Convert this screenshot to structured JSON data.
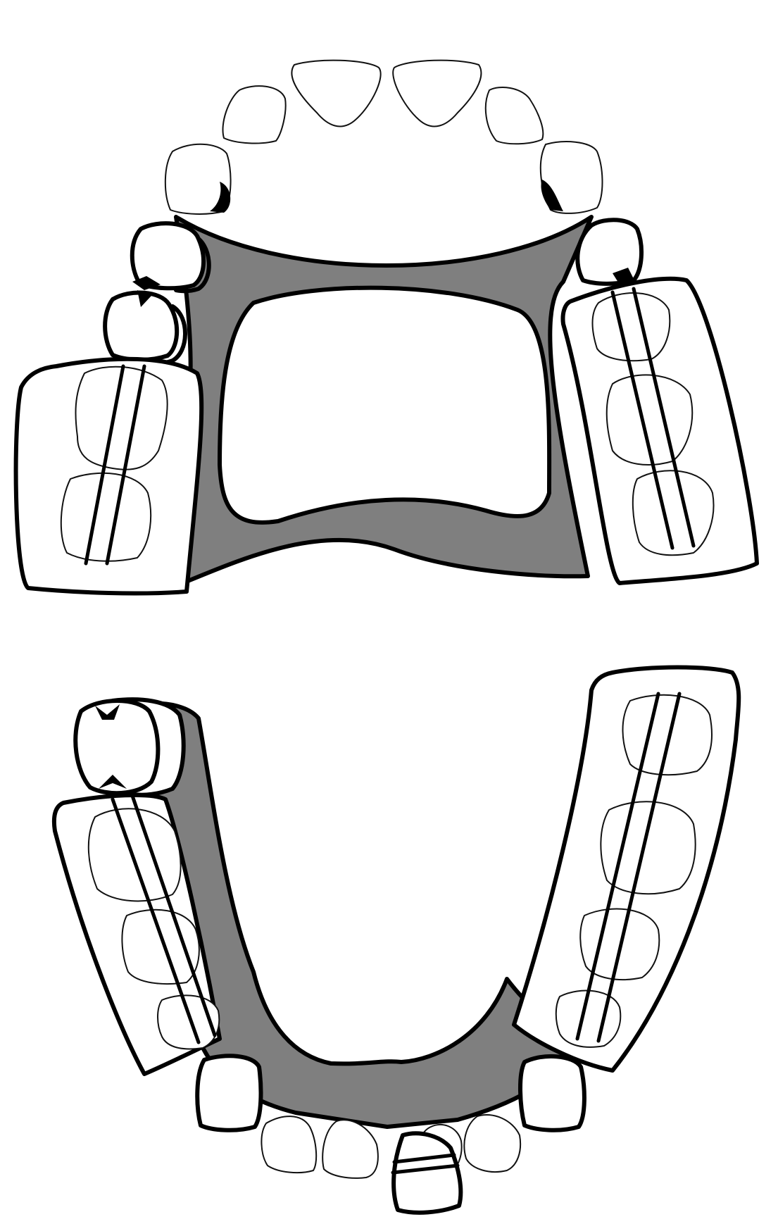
{
  "figure": {
    "colors": {
      "background": "#ffffff",
      "outline": "#000000",
      "appliance_fill": "#7f7f7f"
    }
  }
}
